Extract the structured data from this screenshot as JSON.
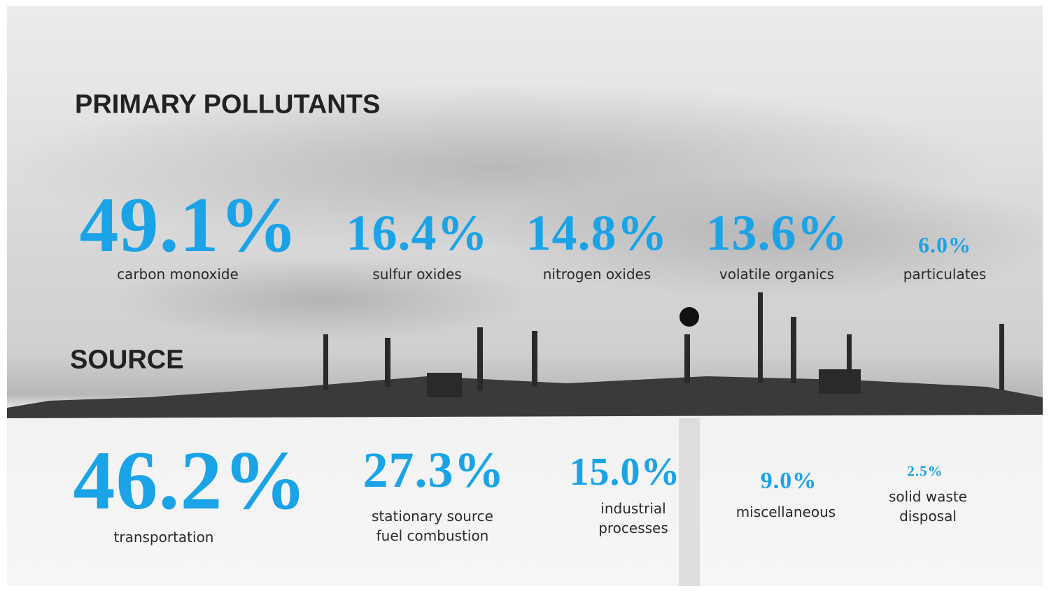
{
  "sections": [
    {
      "title": "PRIMARY POLLUTANTS",
      "items": [
        {
          "value": "49.1%",
          "label": "carbon monoxide"
        },
        {
          "value": "16.4%",
          "label": "sulfur oxides"
        },
        {
          "value": "14.8%",
          "label": "nitrogen oxides"
        },
        {
          "value": "13.6%",
          "label": "volatile organics"
        },
        {
          "value": "6.0%",
          "label": "particulates"
        }
      ]
    },
    {
      "title": "SOURCE",
      "items": [
        {
          "value": "46.2%",
          "label": "transportation"
        },
        {
          "value": "27.3%",
          "label": "stationary source fuel combustion"
        },
        {
          "value": "15.0%",
          "label": "industrial processes"
        },
        {
          "value": "9.0%",
          "label": "miscellaneous"
        },
        {
          "value": "2.5%",
          "label": "solid waste disposal"
        }
      ]
    }
  ]
}
